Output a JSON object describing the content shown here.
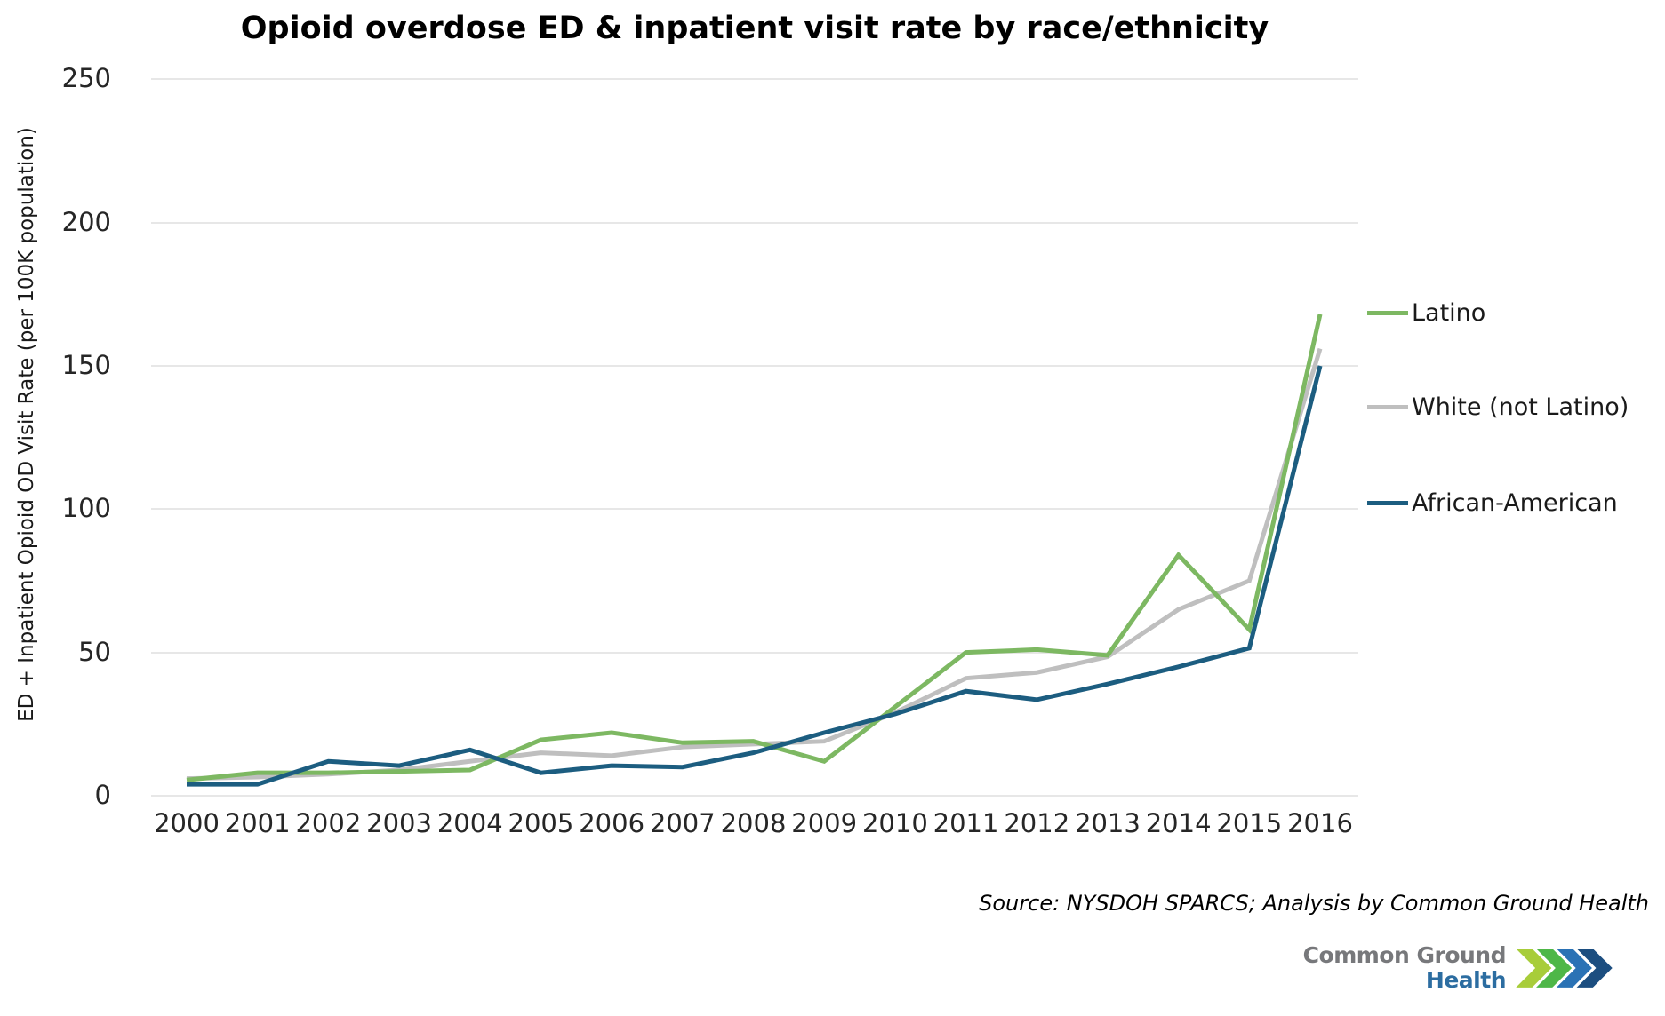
{
  "chart_data": {
    "type": "line",
    "title": "Opioid overdose ED & inpatient visit rate by race/ethnicity",
    "ylabel": "ED + Inpatient Opioid OD Visit Rate (per 100K population)",
    "xlabel": "",
    "x": [
      2000,
      2001,
      2002,
      2003,
      2004,
      2005,
      2006,
      2007,
      2008,
      2009,
      2010,
      2011,
      2012,
      2013,
      2014,
      2015,
      2016
    ],
    "series": [
      {
        "name": "Latino",
        "color": "#7db862",
        "values": [
          5.5,
          8,
          8,
          8.5,
          9,
          19.5,
          22,
          18.5,
          19,
          12,
          31,
          50,
          51,
          49,
          84,
          58,
          168
        ]
      },
      {
        "name": "White (not Latino)",
        "color": "#bfbfbf",
        "values": [
          6,
          6.5,
          7.5,
          9,
          12,
          15,
          14,
          17,
          18,
          19,
          29,
          41,
          43,
          48.5,
          65,
          75,
          156
        ]
      },
      {
        "name": "African-American",
        "color": "#1c5d80",
        "values": [
          4,
          4,
          12,
          10.5,
          16,
          8,
          10.5,
          10,
          15,
          22,
          28.5,
          36.5,
          33.5,
          39,
          45,
          51.5,
          150
        ]
      }
    ],
    "ylim": [
      0,
      250
    ],
    "yticks": [
      0,
      50,
      100,
      150,
      200,
      250
    ],
    "grid": "horizontal",
    "legend_position": "right"
  },
  "source_note": "Source: NYSDOH SPARCS; Analysis by Common Ground Health",
  "logo": {
    "line1": "Common Ground",
    "line2": "Health",
    "line1_color": "#77787b",
    "line2_color": "#2c6da1",
    "chevron_colors": [
      "#a8cd3a",
      "#4eb748",
      "#2a72b5",
      "#1c4e80"
    ]
  }
}
